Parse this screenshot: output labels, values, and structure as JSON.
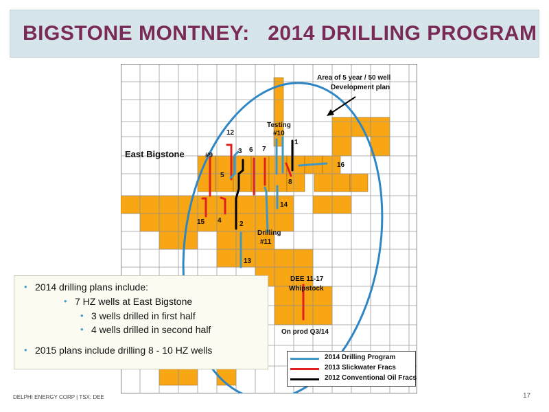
{
  "slide": {
    "title": "BIGSTONE MONTNEY:   2014 DRILLING PROGRAM",
    "footer_left": "DELPHI ENERGY CORP | TSX: DEE",
    "page_number": "17"
  },
  "map": {
    "area_name": "East Bigstone",
    "callout_line1": "Area of 5 year / 50 well",
    "callout_line2": "Development plan",
    "labels": {
      "testing": "Testing",
      "w10": "#10",
      "w1": "1",
      "w12": "12",
      "w3": "3",
      "w6": "6",
      "w7": "7",
      "w9": "#9",
      "w5": "5",
      "w16": "16",
      "w8": "8",
      "w14": "14",
      "w15": "15",
      "w4": "4",
      "w2": "2",
      "drilling": "Drilling",
      "w11": "#11",
      "w13": "13",
      "dee": "DEE 11-17",
      "whipstock": "Whipstock",
      "onprod": "On prod Q3/14"
    },
    "colors": {
      "land": "#f9a614",
      "circle": "#2f86c4",
      "blue_well": "#3f97c4",
      "red_well": "#e02020",
      "black_well": "#000000"
    }
  },
  "bullets": {
    "b1": "2014 drilling plans include:",
    "b2": "7 HZ wells at East Bigstone",
    "b3": "3  wells drilled in first half",
    "b4": "4  wells drilled in second half",
    "b5": "2015 plans include drilling 8 - 10 HZ wells"
  },
  "legend": {
    "items": [
      {
        "label": "2014 Drilling Program",
        "color": "#3f97c4"
      },
      {
        "label": "2013 Slickwater Fracs",
        "color": "#e02020"
      },
      {
        "label": "2012 Conventional Oil Fracs",
        "color": "#000000"
      }
    ]
  }
}
